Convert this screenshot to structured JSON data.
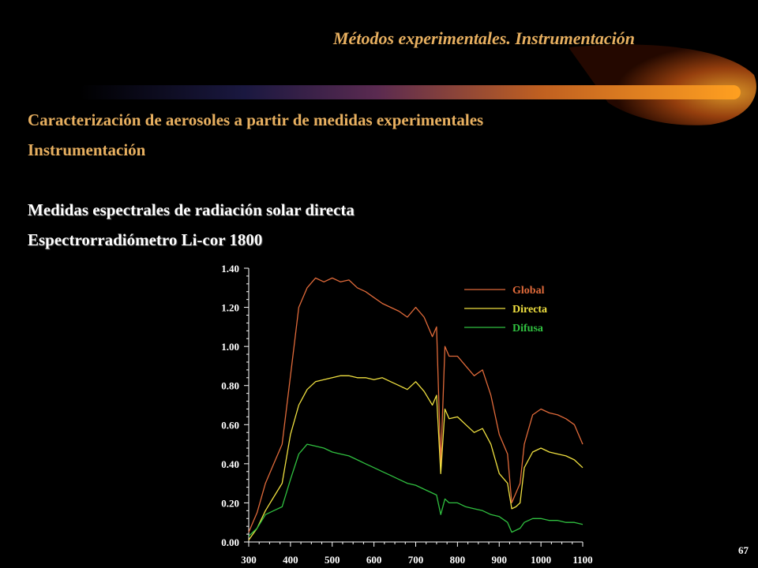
{
  "header": {
    "title": "Métodos experimentales. Instrumentación"
  },
  "body_text": {
    "line1": "Caracterización  de aerosoles a partir de medidas experimentales",
    "line2": "Instrumentación",
    "line3": "Medidas espectrales de radiación solar directa",
    "line4": "Espectrorradiómetro Li-cor 1800"
  },
  "page_number": "67",
  "colors": {
    "heading": "#e8b060",
    "global": "#e06a3a",
    "directa": "#f0e040",
    "difusa": "#30c040",
    "background": "#000000"
  },
  "chart_data": {
    "type": "line",
    "title": "",
    "xlabel": "",
    "ylabel": "",
    "xlim": [
      300,
      1100
    ],
    "ylim": [
      0,
      1.4
    ],
    "x_ticks": [
      "300",
      "400",
      "500",
      "600",
      "700",
      "800",
      "900",
      "1000",
      "1100"
    ],
    "y_ticks": [
      "0.00",
      "0.20",
      "0.40",
      "0.60",
      "0.80",
      "1.00",
      "1.20",
      "1.40"
    ],
    "grid": false,
    "legend_position": "top-right",
    "x": [
      300,
      320,
      340,
      360,
      380,
      400,
      420,
      440,
      460,
      480,
      500,
      520,
      540,
      560,
      580,
      600,
      620,
      640,
      660,
      680,
      700,
      720,
      740,
      750,
      760,
      770,
      780,
      800,
      820,
      840,
      860,
      880,
      900,
      920,
      930,
      940,
      950,
      960,
      980,
      1000,
      1020,
      1040,
      1060,
      1080,
      1100
    ],
    "series": [
      {
        "name": "Global",
        "color": "#e06a3a",
        "values": [
          0.05,
          0.15,
          0.3,
          0.4,
          0.5,
          0.85,
          1.2,
          1.3,
          1.35,
          1.33,
          1.35,
          1.33,
          1.34,
          1.3,
          1.28,
          1.25,
          1.22,
          1.2,
          1.18,
          1.15,
          1.2,
          1.15,
          1.05,
          1.1,
          0.4,
          1.0,
          0.95,
          0.95,
          0.9,
          0.85,
          0.88,
          0.75,
          0.55,
          0.45,
          0.2,
          0.25,
          0.3,
          0.5,
          0.65,
          0.68,
          0.66,
          0.65,
          0.63,
          0.6,
          0.5
        ]
      },
      {
        "name": "Directa",
        "color": "#f0e040",
        "values": [
          0.01,
          0.07,
          0.16,
          0.23,
          0.3,
          0.55,
          0.7,
          0.78,
          0.82,
          0.83,
          0.84,
          0.85,
          0.85,
          0.84,
          0.84,
          0.83,
          0.84,
          0.82,
          0.8,
          0.78,
          0.82,
          0.77,
          0.7,
          0.75,
          0.35,
          0.68,
          0.63,
          0.64,
          0.6,
          0.56,
          0.58,
          0.5,
          0.35,
          0.3,
          0.17,
          0.18,
          0.2,
          0.38,
          0.46,
          0.48,
          0.46,
          0.45,
          0.44,
          0.42,
          0.38
        ]
      },
      {
        "name": "Difusa",
        "color": "#30c040",
        "values": [
          0.03,
          0.07,
          0.14,
          0.16,
          0.18,
          0.32,
          0.45,
          0.5,
          0.49,
          0.48,
          0.46,
          0.45,
          0.44,
          0.42,
          0.4,
          0.38,
          0.36,
          0.34,
          0.32,
          0.3,
          0.29,
          0.27,
          0.25,
          0.24,
          0.14,
          0.22,
          0.2,
          0.2,
          0.18,
          0.17,
          0.16,
          0.14,
          0.13,
          0.1,
          0.05,
          0.06,
          0.07,
          0.1,
          0.12,
          0.12,
          0.11,
          0.11,
          0.1,
          0.1,
          0.09
        ]
      }
    ]
  }
}
